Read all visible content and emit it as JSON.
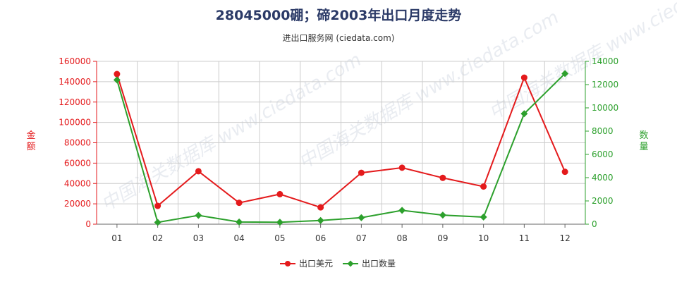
{
  "watermark": "中国海关数据库 www.ciedata.com",
  "chart_data": {
    "type": "line",
    "title": "28045000硼；碲2003年出口月度走势",
    "subtitle": "进出口服务网 (ciedata.com)",
    "categories": [
      "01",
      "02",
      "03",
      "04",
      "05",
      "06",
      "07",
      "08",
      "09",
      "10",
      "11",
      "12"
    ],
    "y_left": {
      "label": "金额",
      "min": 0,
      "max": 160000,
      "ticks": [
        0,
        20000,
        40000,
        60000,
        80000,
        100000,
        120000,
        140000,
        160000
      ],
      "color": "#e41a1c"
    },
    "y_right": {
      "label": "数量",
      "min": 0,
      "max": 14000,
      "ticks": [
        0,
        2000,
        4000,
        6000,
        8000,
        10000,
        12000,
        14000
      ],
      "color": "#2ca02c"
    },
    "grid": true,
    "legend_position": "bottom-center",
    "series": [
      {
        "name": "出口美元",
        "axis": "left",
        "color": "#e41a1c",
        "values": [
          147500,
          18000,
          52000,
          21000,
          29500,
          16500,
          50500,
          55500,
          45500,
          37000,
          144000,
          51500
        ]
      },
      {
        "name": "出口数量",
        "axis": "right",
        "color": "#2ca02c",
        "values": [
          12400,
          160,
          760,
          190,
          170,
          320,
          560,
          1190,
          780,
          610,
          9500,
          12950
        ]
      }
    ]
  }
}
